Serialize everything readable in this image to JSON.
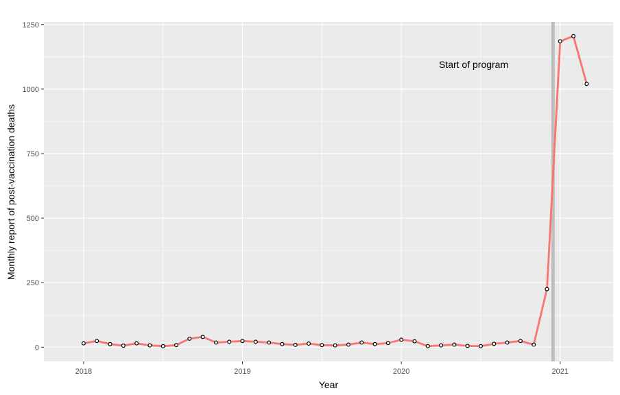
{
  "chart_data": {
    "type": "line",
    "xlabel": "Year",
    "ylabel": "Monthly report of post-vaccination deaths",
    "x_ticks": [
      "2018",
      "2019",
      "2020",
      "2021"
    ],
    "y_ticks": [
      "0",
      "250",
      "500",
      "750",
      "1000",
      "1250"
    ],
    "xlim": [
      "2017-10",
      "2021-05"
    ],
    "ylim": [
      -55,
      1260
    ],
    "grid": true,
    "legend": "none",
    "series": [
      {
        "color": "#f8766d",
        "x": [
          "2018-01",
          "2018-02",
          "2018-03",
          "2018-04",
          "2018-05",
          "2018-06",
          "2018-07",
          "2018-08",
          "2018-09",
          "2018-10",
          "2018-11",
          "2018-12",
          "2019-01",
          "2019-02",
          "2019-03",
          "2019-04",
          "2019-05",
          "2019-06",
          "2019-07",
          "2019-08",
          "2019-09",
          "2019-10",
          "2019-11",
          "2019-12",
          "2020-01",
          "2020-02",
          "2020-03",
          "2020-04",
          "2020-05",
          "2020-06",
          "2020-07",
          "2020-08",
          "2020-09",
          "2020-10",
          "2020-11",
          "2020-12",
          "2021-01",
          "2021-02",
          "2021-03"
        ],
        "values": [
          15,
          24,
          12,
          6,
          15,
          7,
          4,
          8,
          33,
          40,
          18,
          21,
          24,
          21,
          18,
          12,
          9,
          14,
          8,
          7,
          10,
          18,
          12,
          16,
          29,
          23,
          4,
          7,
          10,
          5,
          4,
          13,
          18,
          24,
          10,
          225,
          1185,
          1205,
          1020
        ]
      }
    ],
    "annotations": [
      {
        "type": "vline",
        "x": "2020-12-15",
        "color": "#bebebe"
      },
      {
        "type": "text",
        "text": "Start of program",
        "x": "2020-06-15",
        "y": 1095
      }
    ]
  }
}
